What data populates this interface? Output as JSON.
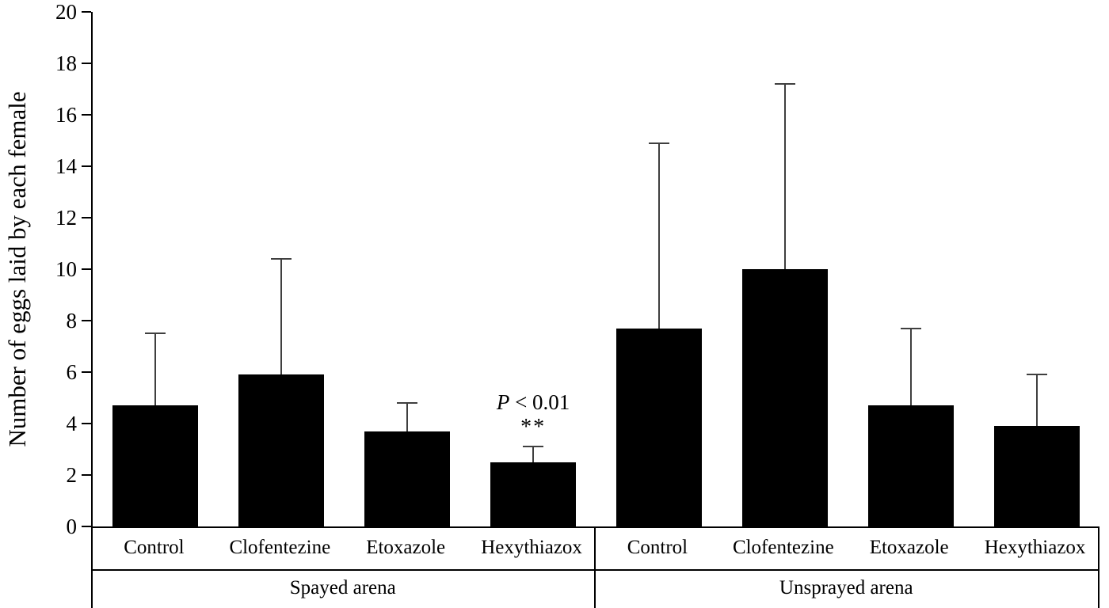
{
  "chart_data": {
    "type": "bar",
    "title": "",
    "ylabel": "Number of eggs laid by each female",
    "xlabel": "",
    "ylim": [
      0,
      20
    ],
    "ytick_step": 2,
    "grid": false,
    "legend": null,
    "bar_color": "#000000",
    "error_color": "#3f3f3f",
    "groups": [
      {
        "label": "Spayed arena",
        "categories": [
          "Control",
          "Clofentezine",
          "Etoxazole",
          "Hexythiazox"
        ],
        "values": [
          4.7,
          5.9,
          3.7,
          2.5
        ],
        "errors_upper": [
          2.8,
          4.5,
          1.1,
          0.6
        ]
      },
      {
        "label": "Unsprayed arena",
        "categories": [
          "Control",
          "Clofentezine",
          "Etoxazole",
          "Hexythiazox"
        ],
        "values": [
          7.7,
          10.0,
          4.7,
          3.9
        ],
        "errors_upper": [
          7.2,
          7.2,
          3.0,
          2.0
        ]
      }
    ],
    "annotation": {
      "p_label": "P",
      "p_rest": " < 0.01",
      "stars": "**",
      "group_index": 0,
      "category_index": 3
    }
  }
}
